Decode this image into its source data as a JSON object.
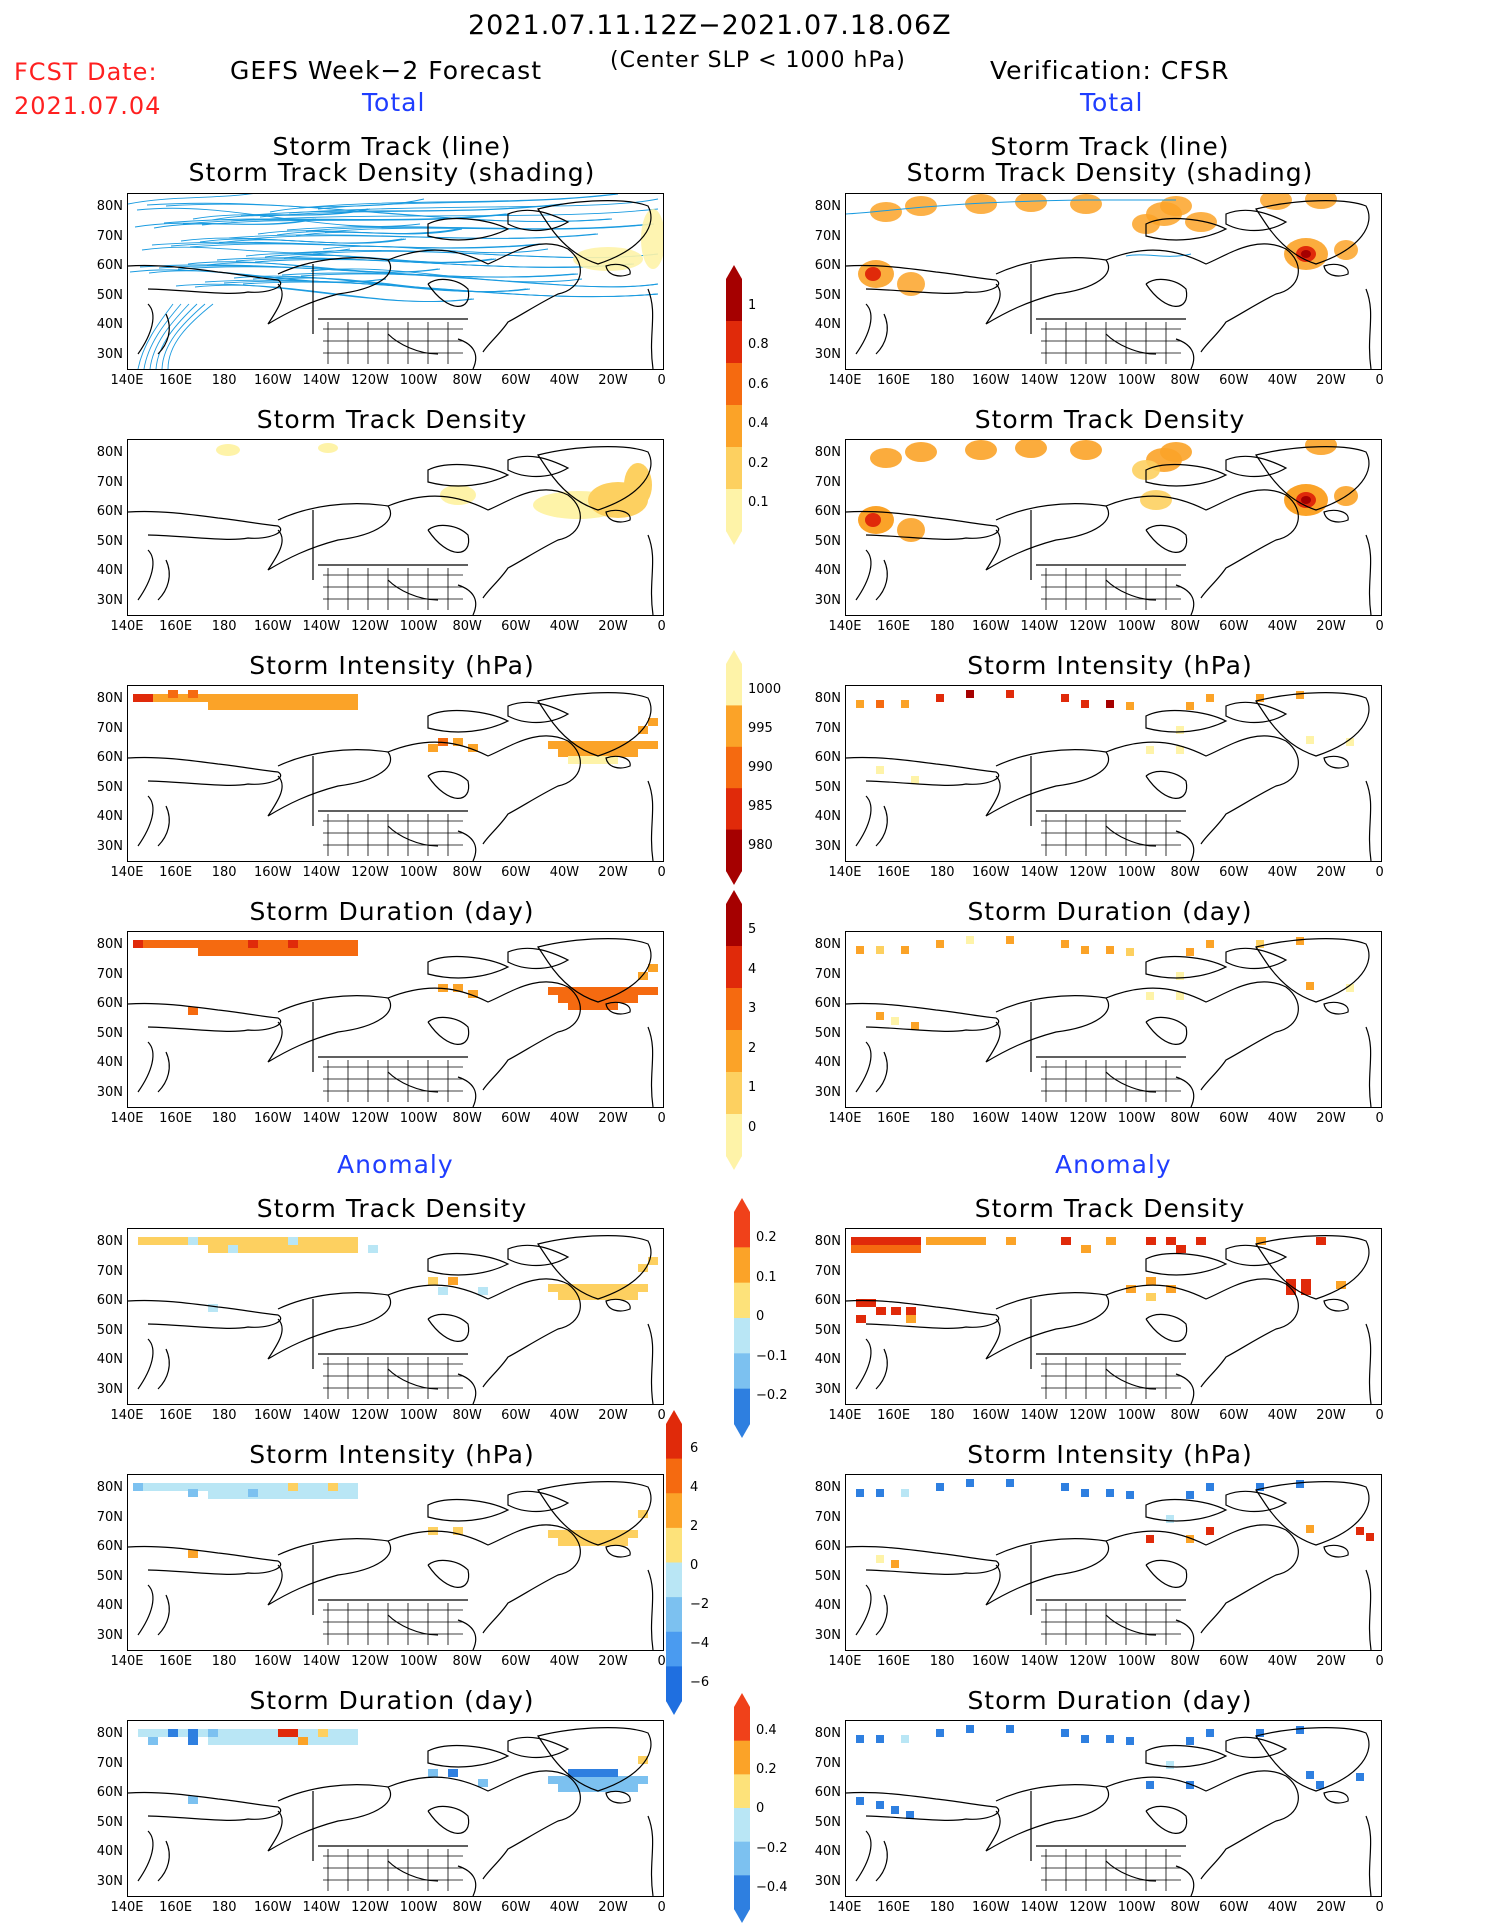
{
  "header": {
    "date_range": "2021.07.11.12Z−2021.07.18.06Z",
    "fcst_label": "FCST Date:",
    "fcst_date": "2021.07.04",
    "left_title": "GEFS Week−2 Forecast",
    "criterion": "(Center SLP < 1000 hPa)",
    "right_title": "Verification: CFSR"
  },
  "sections": {
    "total_left": "Total",
    "total_right": "Total",
    "anomaly_left": "Anomaly",
    "anomaly_right": "Anomaly"
  },
  "panel_titles": {
    "track_line": "Storm Track (line)",
    "track_shading": "Storm Track Density (shading)",
    "density": "Storm Track Density",
    "intensity": "Storm Intensity (hPa)",
    "duration": "Storm Duration (day)"
  },
  "axes": {
    "lat_labels": [
      "80N",
      "70N",
      "60N",
      "50N",
      "40N",
      "30N"
    ],
    "lon_labels": [
      "140E",
      "160E",
      "180",
      "160W",
      "140W",
      "120W",
      "100W",
      "80W",
      "60W",
      "40W",
      "20W",
      "0"
    ]
  },
  "colorbars": {
    "density_total": {
      "labels": [
        "1",
        "0.8",
        "0.6",
        "0.4",
        "0.2",
        "0.1"
      ],
      "colors": [
        "#a50000",
        "#e02a0a",
        "#f56a10",
        "#fba328",
        "#fdd060",
        "#fef3a8"
      ]
    },
    "intensity_total": {
      "labels": [
        "1000",
        "995",
        "990",
        "985",
        "980"
      ],
      "colors": [
        "#fef3a8",
        "#fba328",
        "#f56a10",
        "#e02a0a",
        "#a50000"
      ]
    },
    "duration_total": {
      "labels": [
        "5",
        "4",
        "3",
        "2",
        "1",
        "0"
      ],
      "colors": [
        "#a50000",
        "#e02a0a",
        "#f56a10",
        "#fba328",
        "#fdd060",
        "#fef3a8"
      ]
    },
    "density_anom": {
      "labels": [
        "0.2",
        "0.1",
        "0",
        "−0.1",
        "−0.2"
      ],
      "colors": [
        "#f0411a",
        "#fba328",
        "#fde27a",
        "#b9e6f5",
        "#7cc1f0",
        "#2e7fe0"
      ]
    },
    "intensity_anom": {
      "labels": [
        "6",
        "4",
        "2",
        "0",
        "−2",
        "−4",
        "−6"
      ],
      "colors": [
        "#e02a0a",
        "#f56a10",
        "#fba328",
        "#fde27a",
        "#b9e6f5",
        "#7cc1f0",
        "#4a9bf0",
        "#1f6fe0"
      ]
    },
    "duration_anom": {
      "labels": [
        "0.4",
        "0.2",
        "0",
        "−0.2",
        "−0.4"
      ],
      "colors": [
        "#f0411a",
        "#fba328",
        "#fde27a",
        "#b9e6f5",
        "#7cc1f0",
        "#2e7fe0"
      ]
    }
  }
}
